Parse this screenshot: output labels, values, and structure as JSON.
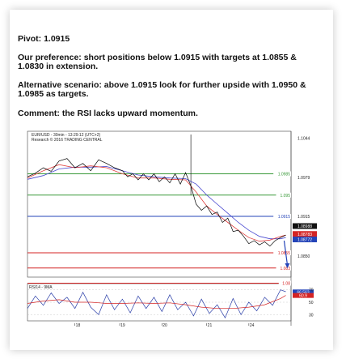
{
  "text": {
    "pivot": "Pivot: 1.0915",
    "preference": "Our preference: short positions below 1.0915 with targets at 1.0855 & 1.0830 in extension.",
    "alternative": "Alternative scenario: above 1.0915 look for further upside with 1.0950 & 1.0985 as targets.",
    "comment": "Comment: the RSI lacks upward momentum."
  },
  "chart_header": {
    "line1": "EUR/USD - 30min - 13:29:12 (UTC+2)",
    "line2": "Research © 2016 TRADING CENTRAL"
  },
  "colors": {
    "resistance": "#3a9a3a",
    "pivot": "#2444b8",
    "support": "#d42424",
    "price": "#000000",
    "ma_fast": "#e04040",
    "ma_slow": "#4848d0",
    "rsi": "#2a3ea8",
    "rsi_ma": "#d42424"
  },
  "chart_data": [
    {
      "type": "line",
      "ylim": [
        1.0815,
        1.1055
      ],
      "y_ticks": [
        "1.1044",
        "1.0979",
        "1.0915",
        "1.0850"
      ],
      "x_ticks": [
        "18",
        "19",
        "20",
        "21",
        "24"
      ],
      "x_range": [
        0,
        100
      ],
      "levels": [
        {
          "value": 1.0985,
          "label": "1.0985",
          "kind": "resistance"
        },
        {
          "value": 1.095,
          "label": "1.095",
          "kind": "resistance"
        },
        {
          "value": 1.0915,
          "label": "1.0915",
          "kind": "pivot"
        },
        {
          "value": 1.0855,
          "label": "1.0855",
          "kind": "support"
        },
        {
          "value": 1.083,
          "label": "1.083",
          "kind": "support"
        },
        {
          "value": 1.0805,
          "label": "1.08",
          "kind": "support"
        }
      ],
      "price_flags": [
        {
          "value": 1.0899,
          "label": "1.08988",
          "color": "#111111"
        },
        {
          "value": 1.0886,
          "label": "1.08783",
          "color": "#d42424"
        },
        {
          "value": 1.0877,
          "label": "1.08772",
          "color": "#2444b8"
        }
      ],
      "vline_x": 62,
      "series": [
        {
          "role": "price",
          "x": [
            0,
            3,
            6,
            9,
            12,
            15,
            18,
            21,
            24,
            27,
            30,
            33,
            36,
            38,
            40,
            42,
            44,
            46,
            48,
            50,
            52,
            54,
            56,
            58,
            60,
            62,
            64,
            66,
            68,
            70,
            72,
            74,
            76,
            78,
            80,
            82,
            84,
            86,
            88,
            90,
            92,
            94,
            96,
            98
          ],
          "y": [
            1.098,
            1.0986,
            1.0995,
            1.0989,
            1.1006,
            1.101,
            1.0995,
            1.1002,
            1.099,
            1.1008,
            1.1002,
            1.0995,
            1.099,
            1.098,
            1.0985,
            1.0975,
            1.0985,
            1.0975,
            1.0985,
            1.0972,
            1.098,
            1.097,
            1.0985,
            1.0968,
            1.0987,
            1.0965,
            1.0935,
            1.0925,
            1.0932,
            1.0918,
            1.0922,
            1.0905,
            1.0912,
            1.089,
            1.0892,
            1.0882,
            1.087,
            1.0875,
            1.0868,
            1.0873,
            1.0866,
            1.0875,
            1.088,
            1.0884
          ]
        },
        {
          "role": "ma_fast",
          "x": [
            0,
            6,
            12,
            18,
            24,
            30,
            36,
            42,
            48,
            54,
            60,
            64,
            68,
            72,
            76,
            80,
            84,
            88,
            92,
            96,
            98
          ],
          "y": [
            1.0978,
            1.099,
            1.1,
            1.0995,
            1.0998,
            1.0995,
            1.0985,
            1.0978,
            1.0978,
            1.0976,
            1.0975,
            1.0955,
            1.0932,
            1.0918,
            1.0905,
            1.0892,
            1.088,
            1.0874,
            1.0876,
            1.0882,
            1.0884
          ]
        },
        {
          "role": "ma_slow",
          "x": [
            0,
            6,
            12,
            18,
            24,
            30,
            36,
            42,
            48,
            54,
            60,
            64,
            68,
            72,
            76,
            80,
            84,
            88,
            92,
            96,
            98
          ],
          "y": [
            1.0976,
            1.0982,
            1.0993,
            1.0996,
            1.0996,
            1.0997,
            1.099,
            1.0983,
            1.098,
            1.0978,
            1.0977,
            1.0968,
            1.095,
            1.0935,
            1.092,
            1.0905,
            1.0892,
            1.0882,
            1.0878,
            1.0878,
            1.088
          ]
        }
      ]
    },
    {
      "type": "line",
      "title": "RSI14 - 9MA",
      "ylim": [
        20,
        80
      ],
      "y_ticks": [
        "70",
        "50",
        "30"
      ],
      "flags": [
        {
          "value": 66.563,
          "label": "66.563",
          "color": "#2444b8"
        },
        {
          "value": 60.9,
          "label": "60.9",
          "color": "#d42424"
        }
      ],
      "series": [
        {
          "role": "rsi",
          "x": [
            0,
            3,
            6,
            9,
            12,
            15,
            18,
            21,
            24,
            27,
            30,
            33,
            36,
            39,
            42,
            45,
            48,
            51,
            54,
            57,
            60,
            63,
            66,
            69,
            72,
            75,
            78,
            81,
            84,
            87,
            90,
            93,
            96,
            98
          ],
          "y": [
            40,
            60,
            45,
            65,
            48,
            58,
            40,
            66,
            42,
            30,
            62,
            38,
            55,
            33,
            60,
            40,
            58,
            35,
            62,
            38,
            50,
            28,
            55,
            32,
            46,
            25,
            56,
            30,
            50,
            36,
            58,
            45,
            70,
            67
          ]
        },
        {
          "role": "rsi_ma",
          "x": [
            0,
            6,
            12,
            18,
            24,
            30,
            36,
            42,
            48,
            54,
            60,
            66,
            72,
            78,
            84,
            90,
            96,
            98
          ],
          "y": [
            48,
            52,
            54,
            50,
            50,
            48,
            48,
            49,
            48,
            49,
            46,
            42,
            40,
            40,
            42,
            46,
            56,
            61
          ]
        }
      ]
    }
  ]
}
